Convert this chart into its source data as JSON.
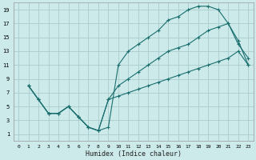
{
  "xlabel": "Humidex (Indice chaleur)",
  "bg_color": "#cceaea",
  "grid_color": "#aacccc",
  "line_color": "#1a6e6e",
  "xlim": [
    -0.5,
    23.5
  ],
  "ylim": [
    0,
    20
  ],
  "xticks": [
    0,
    1,
    2,
    3,
    4,
    5,
    6,
    7,
    8,
    9,
    10,
    11,
    12,
    13,
    14,
    15,
    16,
    17,
    18,
    19,
    20,
    21,
    22,
    23
  ],
  "yticks": [
    1,
    3,
    5,
    7,
    9,
    11,
    13,
    15,
    17,
    19
  ],
  "line1_x": [
    1,
    2,
    3,
    4,
    5,
    6,
    7,
    8,
    9,
    10,
    11,
    12,
    13,
    14,
    15,
    16,
    17,
    18,
    19,
    20,
    21,
    22,
    23
  ],
  "line1_y": [
    8,
    6,
    4,
    4,
    5,
    3.5,
    2,
    1.5,
    2,
    11,
    13,
    14,
    15,
    16,
    17.5,
    18,
    19,
    19.5,
    19.5,
    19,
    17,
    14,
    12
  ],
  "line2_x": [
    1,
    2,
    3,
    4,
    5,
    6,
    7,
    8,
    9,
    10,
    11,
    12,
    13,
    14,
    15,
    16,
    17,
    18,
    19,
    20,
    21,
    22,
    23
  ],
  "line2_y": [
    8,
    6,
    4,
    4,
    5,
    3.5,
    2,
    1.5,
    6,
    8,
    9,
    10,
    11,
    12,
    13,
    13.5,
    14,
    15,
    16,
    16.5,
    17,
    14.5,
    11
  ],
  "line3_x": [
    1,
    2,
    3,
    4,
    5,
    6,
    7,
    8,
    9,
    10,
    11,
    12,
    13,
    14,
    15,
    16,
    17,
    18,
    19,
    20,
    21,
    22,
    23
  ],
  "line3_y": [
    8,
    6,
    4,
    4,
    5,
    3.5,
    2,
    1.5,
    6,
    6.5,
    7,
    7.5,
    8,
    8.5,
    9,
    9.5,
    10,
    10.5,
    11,
    11.5,
    12,
    13,
    11
  ]
}
